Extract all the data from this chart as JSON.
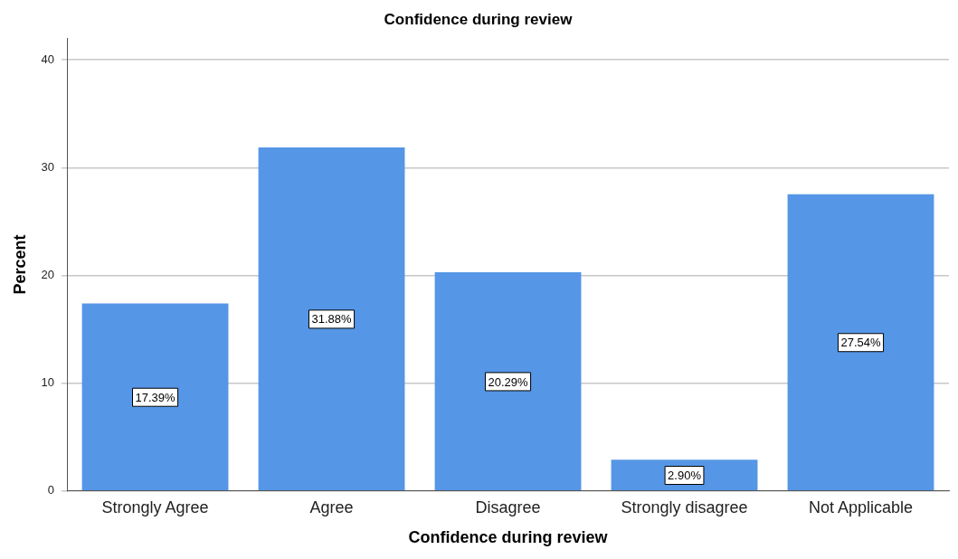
{
  "chart_data": {
    "type": "bar",
    "title": "Confidence during review",
    "xlabel": "Confidence during review",
    "ylabel": "Percent",
    "categories": [
      "Strongly Agree",
      "Agree",
      "Disagree",
      "Strongly disagree",
      "Not Applicable"
    ],
    "values": [
      17.39,
      31.88,
      20.29,
      2.9,
      27.54
    ],
    "value_labels": [
      "17.39%",
      "31.88%",
      "20.29%",
      "2.90%",
      "27.54%"
    ],
    "color": "#5596e6",
    "ylim": [
      0,
      42
    ],
    "yticks": [
      0,
      10,
      20,
      30,
      40
    ],
    "grid": "y"
  }
}
